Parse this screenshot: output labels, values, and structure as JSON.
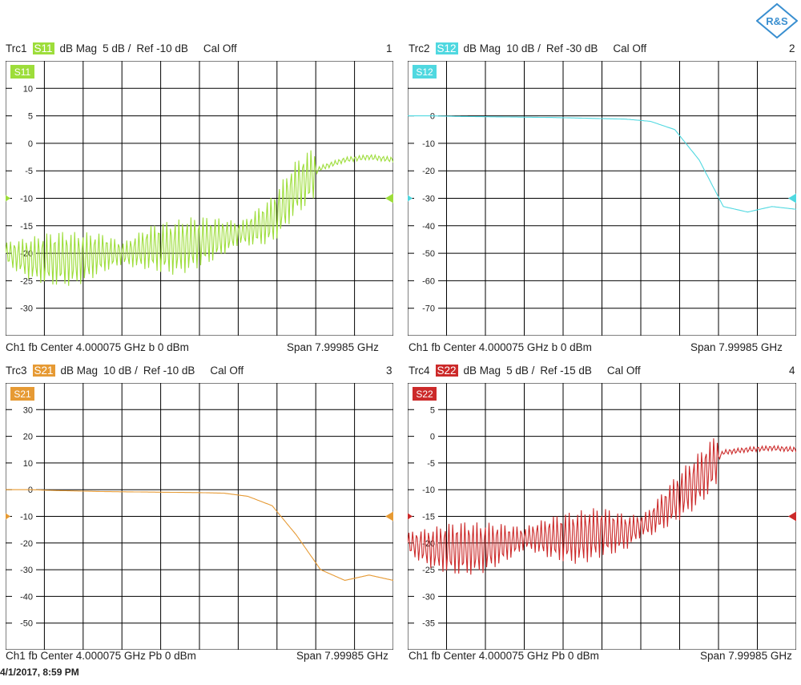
{
  "brand": {
    "logo_text": "R&S"
  },
  "timestamp": "4/1/2017, 8:59 PM",
  "colors": {
    "s11": "#9ddd3a",
    "s12": "#4fd8e0",
    "s21": "#e69a34",
    "s22": "#cc2a2a",
    "grid": "#000000"
  },
  "panels": [
    {
      "trace": "Trc1",
      "param": "S11",
      "format": "dB Mag",
      "scale": "5 dB /",
      "ref": "Ref -10 dB",
      "cal": "Cal Off",
      "index": "1",
      "footer_left": "Ch1  fb  Center  4.000075 GHz  b   0 dBm",
      "footer_right": "Span  7.99985 GHz"
    },
    {
      "trace": "Trc2",
      "param": "S12",
      "format": "dB Mag",
      "scale": "10 dB /",
      "ref": "Ref -30 dB",
      "cal": "Cal Off",
      "index": "2",
      "footer_left": "Ch1  fb  Center  4.000075 GHz  b   0 dBm",
      "footer_right": "Span  7.99985 GHz"
    },
    {
      "trace": "Trc3",
      "param": "S21",
      "format": "dB Mag",
      "scale": "10 dB /",
      "ref": "Ref -10 dB",
      "cal": "Cal Off",
      "index": "3",
      "footer_left": "Ch1  fb  Center  4.000075 GHz    Pb   0 dBm",
      "footer_right": "Span  7.99985 GHz"
    },
    {
      "trace": "Trc4",
      "param": "S22",
      "format": "dB Mag",
      "scale": "5 dB /",
      "ref": "Ref -15 dB",
      "cal": "Cal Off",
      "index": "4",
      "footer_left": "Ch1  fb  Center  4.000075 GHz    Pb   0 dBm",
      "footer_right": "Span  7.99985 GHz"
    }
  ],
  "chart_data": [
    {
      "type": "line",
      "series": [
        {
          "name": "S11",
          "x": [
            0.0,
            0.5,
            1.0,
            1.5,
            2.0,
            2.5,
            3.0,
            3.5,
            4.0,
            4.5,
            5.0,
            5.5,
            6.0,
            6.5,
            7.0,
            7.5,
            8.0
          ],
          "values": [
            -20,
            -21,
            -21,
            -21,
            -20,
            -20,
            -19,
            -19,
            -18,
            -17,
            -16,
            -14,
            -8,
            -4.5,
            -3,
            -2.5,
            -3
          ]
        }
      ],
      "ylim": [
        -35,
        15
      ],
      "ref_level": -10,
      "y_ticks": [
        10,
        5,
        0,
        -5,
        -10,
        -15,
        -20,
        -25,
        -30
      ],
      "ripple": 1,
      "grid": true
    },
    {
      "type": "line",
      "series": [
        {
          "name": "S12",
          "x": [
            0.0,
            0.5,
            1.0,
            1.5,
            2.0,
            2.5,
            3.0,
            3.5,
            4.0,
            4.5,
            5.0,
            5.5,
            6.0,
            6.5,
            7.0,
            7.5,
            8.0
          ],
          "values": [
            0,
            0,
            -0.2,
            -0.3,
            -0.4,
            -0.5,
            -0.6,
            -0.8,
            -1,
            -1.2,
            -2,
            -5,
            -16,
            -33,
            -35,
            -33,
            -34
          ]
        }
      ],
      "ylim": [
        -80,
        20
      ],
      "ref_level": -30,
      "y_ticks": [
        0,
        -10,
        -20,
        -30,
        -40,
        -50,
        -60,
        -70
      ],
      "ripple": 0,
      "grid": true
    },
    {
      "type": "line",
      "series": [
        {
          "name": "S21",
          "x": [
            0.0,
            0.5,
            1.0,
            1.5,
            2.0,
            2.5,
            3.0,
            3.5,
            4.0,
            4.5,
            5.0,
            5.5,
            6.0,
            6.5,
            7.0,
            7.5,
            8.0
          ],
          "values": [
            0,
            0,
            -0.3,
            -0.5,
            -0.7,
            -0.8,
            -0.9,
            -1,
            -1.1,
            -1.3,
            -2.5,
            -6,
            -17,
            -30,
            -34,
            -32,
            -34
          ]
        }
      ],
      "ylim": [
        -60,
        40
      ],
      "ref_level": -10,
      "y_ticks": [
        30,
        20,
        10,
        0,
        -10,
        -20,
        -30,
        -40,
        -50
      ],
      "ripple": 0,
      "grid": true
    },
    {
      "type": "line",
      "series": [
        {
          "name": "S22",
          "x": [
            0.0,
            0.5,
            1.0,
            1.5,
            2.0,
            2.5,
            3.0,
            3.5,
            4.0,
            4.5,
            5.0,
            5.5,
            6.0,
            6.5,
            7.0,
            7.5,
            8.0
          ],
          "values": [
            -20,
            -21,
            -21,
            -21,
            -20,
            -19,
            -19,
            -19,
            -18,
            -18,
            -16,
            -12,
            -8,
            -3,
            -2.5,
            -2.2,
            -2.5
          ]
        }
      ],
      "ylim": [
        -40,
        10
      ],
      "ref_level": -15,
      "y_ticks": [
        5,
        0,
        -5,
        -10,
        -15,
        -20,
        -25,
        -30,
        -35
      ],
      "ripple": 1,
      "grid": true
    }
  ]
}
